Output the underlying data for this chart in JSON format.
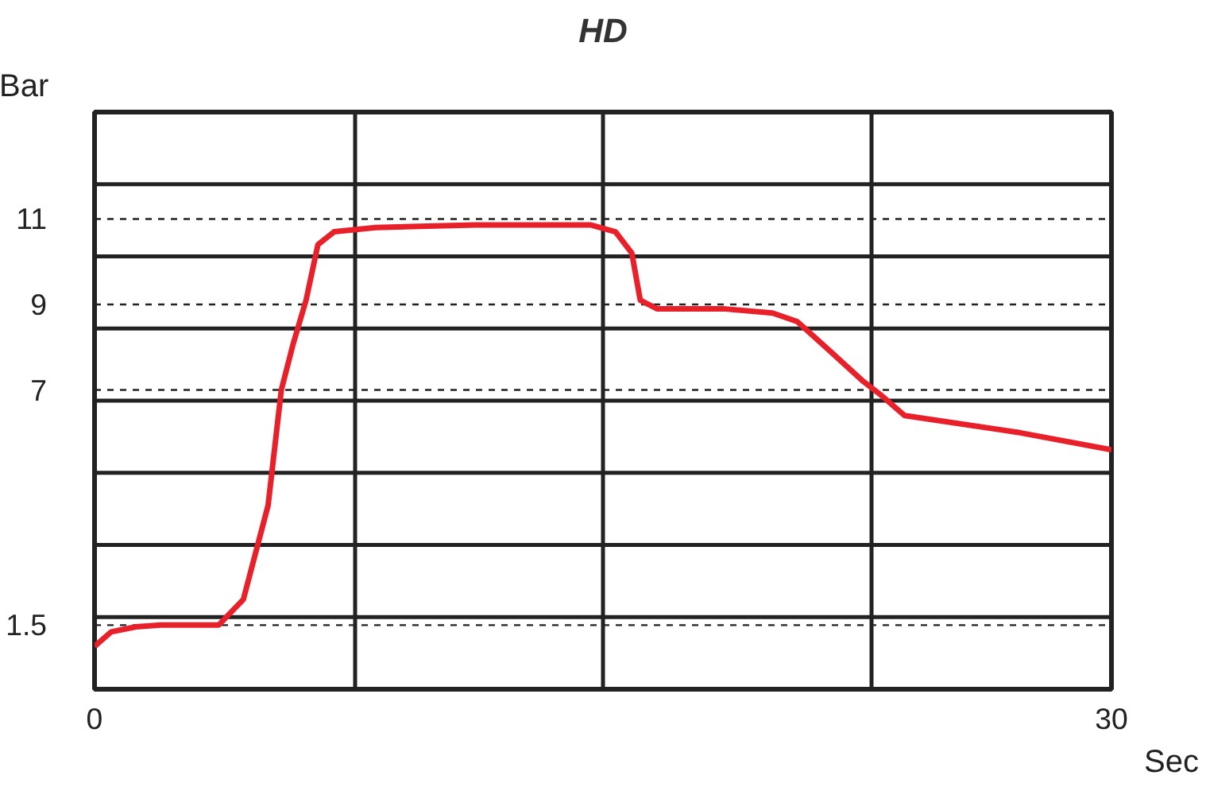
{
  "chart_data": {
    "type": "line",
    "title": "HD",
    "xlabel": "Sec",
    "ylabel": "Bar",
    "x": [
      0,
      0.49,
      1.22,
      1.95,
      3.66,
      4.39,
      5.12,
      5.51,
      5.85,
      6.24,
      6.59,
      7.07,
      8.29,
      11.22,
      14.63,
      15.37,
      15.85,
      16.1,
      16.59,
      18.54,
      20.0,
      20.73,
      21.71,
      22.68,
      23.17,
      23.9,
      27.3,
      30
    ],
    "series": [
      {
        "color": "#e8202a",
        "values": [
          1.0,
          1.34,
          1.46,
          1.5,
          1.5,
          2.1,
          4.3,
          7,
          8.05,
          9.1,
          10.4,
          10.7,
          10.8,
          10.86,
          10.86,
          10.7,
          10.2,
          9.1,
          8.9,
          8.9,
          8.8,
          8.6,
          7.9,
          7.2,
          6.9,
          6.4,
          6.0,
          5.6
        ]
      }
    ],
    "xlim": [
      0,
      30
    ],
    "ylim": [
      0,
      13.5
    ],
    "xticks": [
      0,
      {
        "value": 7.7,
        "label": null
      },
      {
        "value": 15,
        "label": null
      },
      {
        "value": 22.9,
        "label": null
      },
      30
    ],
    "yticks": [
      1.5,
      7,
      9,
      11
    ],
    "ref_lines": [
      {
        "axis": "y",
        "value": 11,
        "color": "#222222",
        "line_style": "dashed"
      },
      {
        "axis": "y",
        "value": 9,
        "color": "#222222",
        "line_style": "dashed"
      },
      {
        "axis": "y",
        "value": 7,
        "color": "#222222",
        "line_style": "dashed"
      },
      {
        "axis": "y",
        "value": 1.5,
        "color": "#222222",
        "line_style": "dashed"
      }
    ],
    "grid": "x",
    "marker": "none",
    "line_style": "solid"
  }
}
